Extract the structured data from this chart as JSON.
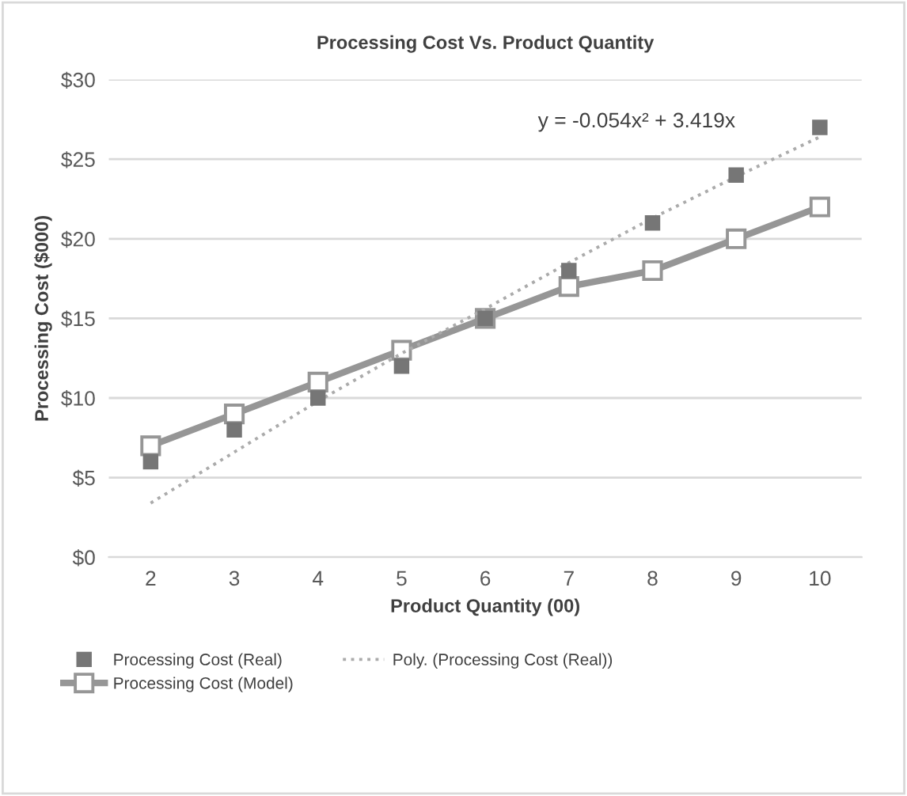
{
  "chart_data": {
    "type": "line",
    "title": "Processing Cost Vs. Product Quantity",
    "xlabel": "Product Quantity (00)",
    "ylabel": "Processing Cost ($000)",
    "categories": [
      "2",
      "3",
      "4",
      "5",
      "6",
      "7",
      "8",
      "9",
      "10"
    ],
    "series": [
      {
        "name": "Processing Cost (Real)",
        "type": "scatter",
        "color": "#767676",
        "marker": "square",
        "values": [
          6,
          8,
          10,
          12,
          15,
          18,
          21,
          24,
          27
        ]
      },
      {
        "name": "Processing Cost (Model)",
        "type": "line",
        "color": "#969696",
        "marker": "square",
        "line_style": "solid",
        "values": [
          7,
          9,
          11,
          13,
          15,
          17,
          18,
          20,
          22
        ]
      },
      {
        "name": "Poly. (Processing Cost (Real))",
        "type": "line",
        "color": "#ababab",
        "line_style": "dotted",
        "values": [
          3.4,
          6.6,
          9.8,
          12.8,
          15.6,
          18.5,
          21.3,
          23.9,
          26.4
        ]
      }
    ],
    "annotations": [
      "y = -0.054x² + 3.419x"
    ],
    "ylim": [
      0,
      30
    ],
    "yticks": [
      {
        "value": 0,
        "label": "$0"
      },
      {
        "value": 5,
        "label": "$5"
      },
      {
        "value": 10,
        "label": "$10"
      },
      {
        "value": 15,
        "label": "$15"
      },
      {
        "value": 20,
        "label": "$20"
      },
      {
        "value": 25,
        "label": "$25"
      },
      {
        "value": 30,
        "label": "$30"
      }
    ],
    "grid": "y",
    "legend": "bottom"
  }
}
